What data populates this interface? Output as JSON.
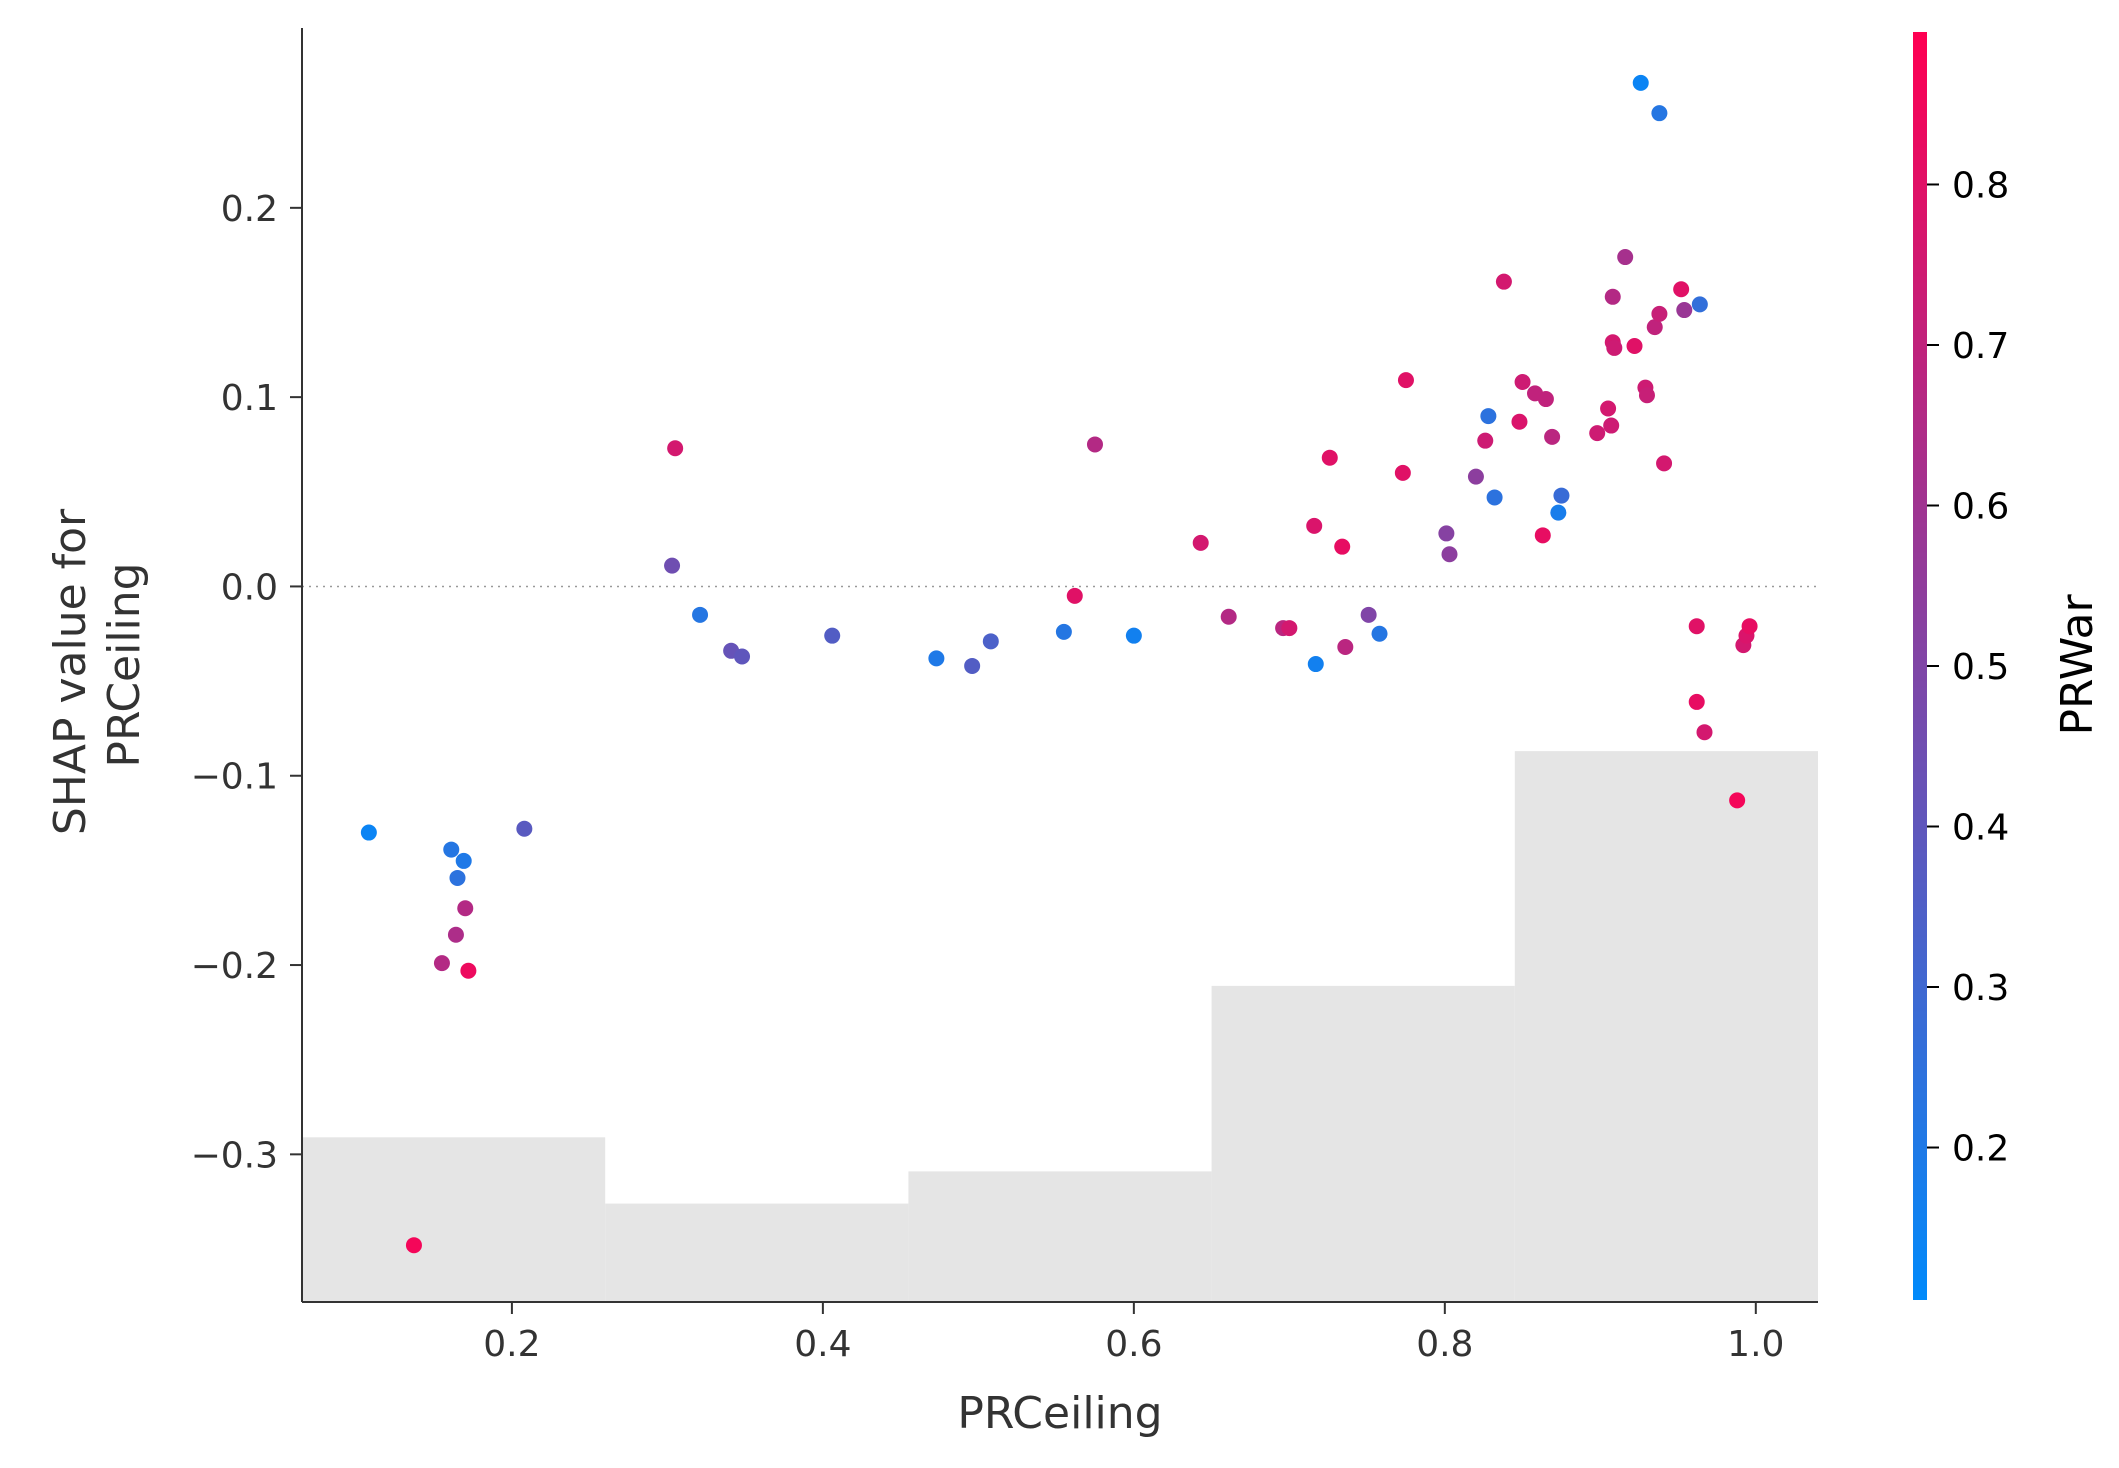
{
  "chart_data": {
    "type": "scatter",
    "title": "",
    "xlabel": "PRCeiling",
    "ylabel_lines": [
      "SHAP value for",
      "PRCeiling"
    ],
    "xlim": [
      0.065,
      1.04
    ],
    "ylim": [
      -0.378,
      0.295
    ],
    "x_ticks": [
      {
        "value": 0.2,
        "label": "0.2"
      },
      {
        "value": 0.4,
        "label": "0.4"
      },
      {
        "value": 0.6,
        "label": "0.6"
      },
      {
        "value": 0.8,
        "label": "0.8"
      },
      {
        "value": 1.0,
        "label": "1.0"
      }
    ],
    "y_ticks": [
      {
        "value": 0.2,
        "label": "0.2"
      },
      {
        "value": 0.1,
        "label": "0.1"
      },
      {
        "value": 0.0,
        "label": "0.0"
      },
      {
        "value": -0.1,
        "label": "−0.1"
      },
      {
        "value": -0.2,
        "label": "−0.2"
      },
      {
        "value": -0.3,
        "label": "−0.3"
      }
    ],
    "zero_line": {
      "y": 0.0,
      "style": "dotted",
      "color": "#999999"
    },
    "histogram": {
      "color": "#e5e5e5",
      "bins": [
        {
          "x0": 0.065,
          "x1": 0.26,
          "top": -0.291
        },
        {
          "x0": 0.26,
          "x1": 0.455,
          "top": -0.326
        },
        {
          "x0": 0.455,
          "x1": 0.65,
          "top": -0.309
        },
        {
          "x0": 0.65,
          "x1": 0.845,
          "top": -0.211
        },
        {
          "x0": 0.845,
          "x1": 1.04,
          "top": -0.087
        }
      ]
    },
    "colorbar": {
      "label": "PRWar",
      "range": [
        0.105,
        0.895
      ],
      "color_low": "#008afb",
      "color_high": "#ff0052",
      "ticks": [
        {
          "value": 0.2,
          "label": "0.2"
        },
        {
          "value": 0.3,
          "label": "0.3"
        },
        {
          "value": 0.4,
          "label": "0.4"
        },
        {
          "value": 0.5,
          "label": "0.5"
        },
        {
          "value": 0.6,
          "label": "0.6"
        },
        {
          "value": 0.7,
          "label": "0.7"
        },
        {
          "value": 0.8,
          "label": "0.8"
        }
      ]
    },
    "points": [
      {
        "x": 0.108,
        "y": -0.13,
        "c": 0.14
      },
      {
        "x": 0.137,
        "y": -0.348,
        "c": 0.86
      },
      {
        "x": 0.155,
        "y": -0.199,
        "c": 0.66
      },
      {
        "x": 0.161,
        "y": -0.139,
        "c": 0.22
      },
      {
        "x": 0.164,
        "y": -0.184,
        "c": 0.64
      },
      {
        "x": 0.165,
        "y": -0.154,
        "c": 0.24
      },
      {
        "x": 0.169,
        "y": -0.145,
        "c": 0.2
      },
      {
        "x": 0.17,
        "y": -0.17,
        "c": 0.66
      },
      {
        "x": 0.172,
        "y": -0.203,
        "c": 0.84
      },
      {
        "x": 0.208,
        "y": -0.128,
        "c": 0.38
      },
      {
        "x": 0.303,
        "y": 0.011,
        "c": 0.45
      },
      {
        "x": 0.305,
        "y": 0.073,
        "c": 0.76
      },
      {
        "x": 0.321,
        "y": -0.015,
        "c": 0.22
      },
      {
        "x": 0.341,
        "y": -0.034,
        "c": 0.42
      },
      {
        "x": 0.348,
        "y": -0.037,
        "c": 0.4
      },
      {
        "x": 0.406,
        "y": -0.026,
        "c": 0.36
      },
      {
        "x": 0.473,
        "y": -0.038,
        "c": 0.2
      },
      {
        "x": 0.496,
        "y": -0.042,
        "c": 0.36
      },
      {
        "x": 0.508,
        "y": -0.029,
        "c": 0.34
      },
      {
        "x": 0.555,
        "y": -0.024,
        "c": 0.22
      },
      {
        "x": 0.562,
        "y": -0.005,
        "c": 0.8
      },
      {
        "x": 0.575,
        "y": 0.075,
        "c": 0.66
      },
      {
        "x": 0.6,
        "y": -0.026,
        "c": 0.16
      },
      {
        "x": 0.643,
        "y": 0.023,
        "c": 0.76
      },
      {
        "x": 0.661,
        "y": -0.016,
        "c": 0.66
      },
      {
        "x": 0.696,
        "y": -0.022,
        "c": 0.68
      },
      {
        "x": 0.7,
        "y": -0.022,
        "c": 0.76
      },
      {
        "x": 0.716,
        "y": 0.032,
        "c": 0.78
      },
      {
        "x": 0.717,
        "y": -0.041,
        "c": 0.16
      },
      {
        "x": 0.726,
        "y": 0.068,
        "c": 0.8
      },
      {
        "x": 0.734,
        "y": 0.021,
        "c": 0.82
      },
      {
        "x": 0.736,
        "y": -0.032,
        "c": 0.68
      },
      {
        "x": 0.751,
        "y": -0.015,
        "c": 0.5
      },
      {
        "x": 0.758,
        "y": -0.025,
        "c": 0.22
      },
      {
        "x": 0.773,
        "y": 0.06,
        "c": 0.8
      },
      {
        "x": 0.775,
        "y": 0.109,
        "c": 0.8
      },
      {
        "x": 0.801,
        "y": 0.028,
        "c": 0.52
      },
      {
        "x": 0.803,
        "y": 0.017,
        "c": 0.54
      },
      {
        "x": 0.82,
        "y": 0.058,
        "c": 0.54
      },
      {
        "x": 0.826,
        "y": 0.077,
        "c": 0.74
      },
      {
        "x": 0.828,
        "y": 0.09,
        "c": 0.24
      },
      {
        "x": 0.832,
        "y": 0.047,
        "c": 0.24
      },
      {
        "x": 0.838,
        "y": 0.161,
        "c": 0.76
      },
      {
        "x": 0.848,
        "y": 0.087,
        "c": 0.78
      },
      {
        "x": 0.85,
        "y": 0.108,
        "c": 0.74
      },
      {
        "x": 0.858,
        "y": 0.102,
        "c": 0.7
      },
      {
        "x": 0.863,
        "y": 0.027,
        "c": 0.82
      },
      {
        "x": 0.865,
        "y": 0.099,
        "c": 0.7
      },
      {
        "x": 0.869,
        "y": 0.079,
        "c": 0.68
      },
      {
        "x": 0.873,
        "y": 0.039,
        "c": 0.18
      },
      {
        "x": 0.875,
        "y": 0.048,
        "c": 0.28
      },
      {
        "x": 0.898,
        "y": 0.081,
        "c": 0.74
      },
      {
        "x": 0.905,
        "y": 0.094,
        "c": 0.76
      },
      {
        "x": 0.907,
        "y": 0.085,
        "c": 0.74
      },
      {
        "x": 0.908,
        "y": 0.153,
        "c": 0.66
      },
      {
        "x": 0.908,
        "y": 0.129,
        "c": 0.76
      },
      {
        "x": 0.909,
        "y": 0.126,
        "c": 0.74
      },
      {
        "x": 0.916,
        "y": 0.174,
        "c": 0.62
      },
      {
        "x": 0.922,
        "y": 0.127,
        "c": 0.8
      },
      {
        "x": 0.926,
        "y": 0.266,
        "c": 0.14
      },
      {
        "x": 0.929,
        "y": 0.105,
        "c": 0.74
      },
      {
        "x": 0.93,
        "y": 0.101,
        "c": 0.72
      },
      {
        "x": 0.935,
        "y": 0.137,
        "c": 0.7
      },
      {
        "x": 0.938,
        "y": 0.25,
        "c": 0.22
      },
      {
        "x": 0.938,
        "y": 0.144,
        "c": 0.72
      },
      {
        "x": 0.941,
        "y": 0.065,
        "c": 0.76
      },
      {
        "x": 0.952,
        "y": 0.157,
        "c": 0.8
      },
      {
        "x": 0.954,
        "y": 0.146,
        "c": 0.58
      },
      {
        "x": 0.962,
        "y": -0.021,
        "c": 0.8
      },
      {
        "x": 0.962,
        "y": -0.061,
        "c": 0.82
      },
      {
        "x": 0.964,
        "y": 0.149,
        "c": 0.26
      },
      {
        "x": 0.967,
        "y": -0.077,
        "c": 0.76
      },
      {
        "x": 0.988,
        "y": -0.113,
        "c": 0.86
      },
      {
        "x": 0.992,
        "y": -0.031,
        "c": 0.76
      },
      {
        "x": 0.994,
        "y": -0.026,
        "c": 0.78
      },
      {
        "x": 0.996,
        "y": -0.021,
        "c": 0.82
      }
    ]
  }
}
